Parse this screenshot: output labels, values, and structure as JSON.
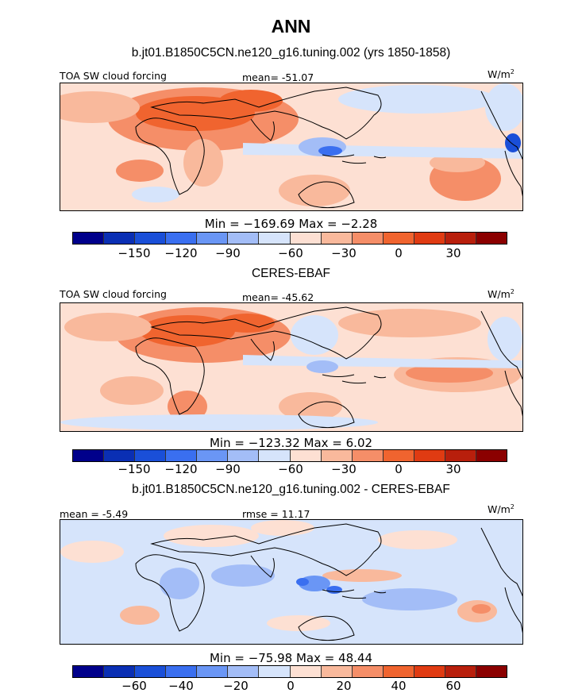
{
  "title": "ANN",
  "colors": [
    "#00008b",
    "#0a2fb4",
    "#1a4fd8",
    "#3a6ff0",
    "#6a96f5",
    "#a3bdf7",
    "#d6e4fb",
    "#fde0d3",
    "#f9b99c",
    "#f58e68",
    "#f0642f",
    "#e03b12",
    "#b81f0c",
    "#8b0000"
  ],
  "panels": [
    {
      "subtitle": "b.jt01.B1850C5CN.ne120_g16.tuning.002 (yrs 1850-1858)",
      "left_label": "TOA SW cloud forcing",
      "center_label": "mean= -51.07",
      "units_base": "W/m",
      "units_exp": "2",
      "minmax": "Min = −169.69 Max =   −2.28",
      "ticks": [
        "−150",
        "−120",
        "−90",
        "−60",
        "−30",
        "0",
        "30"
      ]
    },
    {
      "subtitle": "CERES-EBAF",
      "left_label": "TOA SW cloud forcing",
      "center_label": "mean= -45.62",
      "units_base": "W/m",
      "units_exp": "2",
      "minmax": "Min = −123.32 Max =    6.02",
      "ticks": [
        "−150",
        "−120",
        "−90",
        "−60",
        "−30",
        "0",
        "30"
      ]
    },
    {
      "subtitle": "b.jt01.B1850C5CN.ne120_g16.tuning.002 - CERES-EBAF",
      "left_label": "mean =  -5.49",
      "center_label": "rmse =  11.17",
      "units_base": "W/m",
      "units_exp": "2",
      "minmax": "Min = −75.98 Max =  48.44",
      "ticks": [
        "−60",
        "−40",
        "−20",
        "0",
        "20",
        "40",
        "60"
      ]
    }
  ]
}
